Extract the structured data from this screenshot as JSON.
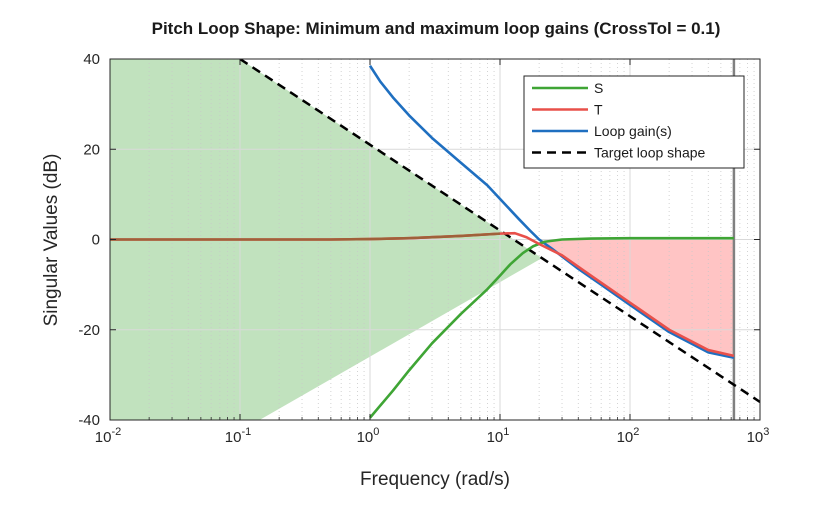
{
  "chart_data": {
    "type": "line",
    "title": "Pitch Loop Shape: Minimum and maximum loop gains (CrossTol = 0.1)",
    "xlabel": "Frequency (rad/s)",
    "ylabel": "Singular Values (dB)",
    "x_scale": "log",
    "xlim": [
      0.01,
      1000
    ],
    "ylim": [
      -40,
      40
    ],
    "grid": true,
    "legend_position": "top-right",
    "x_ticks": [
      {
        "base": "10",
        "exp": "-2"
      },
      {
        "base": "10",
        "exp": "-1"
      },
      {
        "base": "10",
        "exp": "0"
      },
      {
        "base": "10",
        "exp": "1"
      },
      {
        "base": "10",
        "exp": "2"
      },
      {
        "base": "10",
        "exp": "3"
      }
    ],
    "y_ticks": [
      "40",
      "20",
      "0",
      "-20",
      "-40"
    ],
    "frequency_limit": 630,
    "series": [
      {
        "name": "S",
        "color": "#3fa535",
        "x": [
          1.0,
          1.5,
          2.0,
          3.0,
          5.0,
          8.0,
          10.0,
          12.0,
          15.0,
          18.0,
          22.0,
          30.0,
          50.0,
          100.0,
          300.0,
          630.0
        ],
        "y": [
          -39.5,
          -33.5,
          -29,
          -23,
          -16.5,
          -11,
          -8,
          -5.5,
          -3,
          -1.5,
          -0.5,
          0,
          0.2,
          0.3,
          0.3,
          0.3
        ]
      },
      {
        "name": "T",
        "color": "#e8504a",
        "x": [
          0.01,
          0.1,
          0.5,
          1.0,
          2.0,
          5.0,
          10.0,
          13.0,
          16.0,
          20.0,
          30.0,
          50.0,
          100.0,
          200.0,
          400.0,
          630.0
        ],
        "y": [
          0,
          0,
          0,
          0.1,
          0.3,
          0.8,
          1.3,
          1.4,
          0.5,
          -1,
          -3.5,
          -8,
          -14,
          -20,
          -24.5,
          -25.8
        ]
      },
      {
        "name": "Loop gain(s)",
        "color": "#1f6fc0",
        "x": [
          1.0,
          1.2,
          1.5,
          2.0,
          3.0,
          5.0,
          8.0,
          10.0,
          14.0,
          17.0,
          20.0,
          25.0,
          40.0,
          60.0,
          100.0,
          200.0,
          400.0,
          630.0
        ],
        "y": [
          38.5,
          35,
          31.5,
          27.5,
          22.5,
          17,
          12,
          9,
          4.5,
          2,
          0,
          -2,
          -6.5,
          -10,
          -14.5,
          -20.5,
          -25,
          -26.2
        ]
      },
      {
        "name": "Target loop shape",
        "color": "#000000",
        "x": [
          0.1,
          1000.0
        ],
        "y": [
          40,
          -36
        ]
      }
    ]
  }
}
